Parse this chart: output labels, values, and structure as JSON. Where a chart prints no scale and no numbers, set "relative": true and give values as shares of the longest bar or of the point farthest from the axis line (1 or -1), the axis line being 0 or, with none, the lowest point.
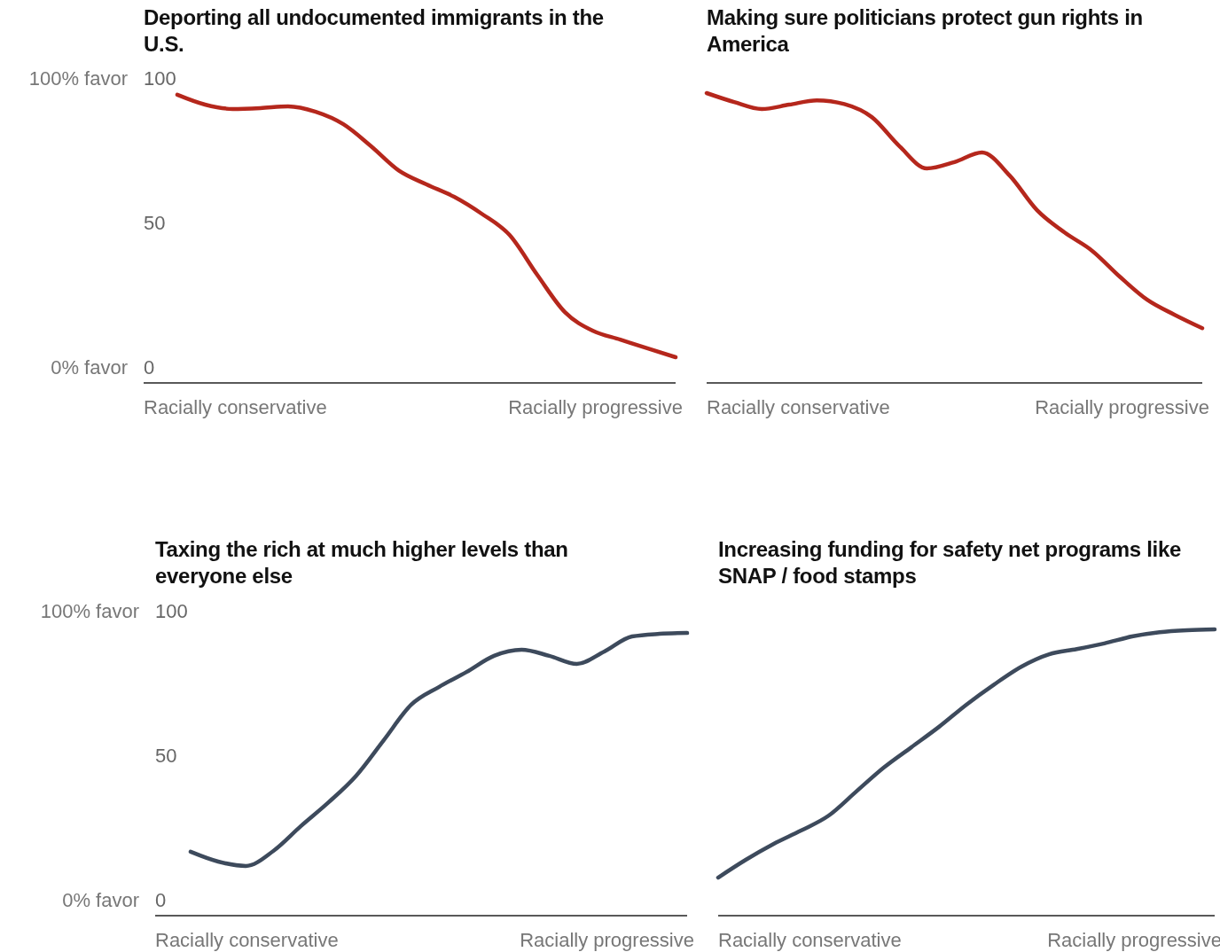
{
  "chart_data": [
    {
      "type": "line",
      "title": "Deporting all undocumented immigrants in the U.S.",
      "categories": [
        null,
        null,
        null,
        null,
        null,
        null,
        null,
        null,
        null,
        null,
        null,
        null,
        null,
        null,
        null,
        null,
        null,
        null,
        null
      ],
      "series": [
        {
          "color": "#b5271c",
          "values": [
            94.2,
            90.8,
            89.3,
            89.6,
            90.2,
            88.3,
            84,
            76.4,
            68,
            63.2,
            58.9,
            53,
            45.7,
            31.9,
            19,
            12.6,
            9.5,
            6.4,
            3.4
          ]
        }
      ],
      "ylim": [
        -5.5,
        100
      ],
      "yticks": [
        0,
        50,
        100
      ],
      "grid": false,
      "marker": "none",
      "line_style": "solid",
      "annotations": [
        "Racially conservative",
        "Racially progressive",
        "100% favor",
        "0% favor"
      ]
    },
    {
      "type": "line",
      "title": "Making sure politicians protect gun rights in America",
      "categories": [
        null,
        null,
        null,
        null,
        null,
        null,
        null,
        null,
        null,
        null,
        null,
        null,
        null,
        null,
        null,
        null,
        null,
        null,
        null
      ],
      "series": [
        {
          "color": "#b5271c",
          "values": [
            1,
            0.969,
            0.945,
            0.96,
            0.975,
            0.962,
            0.917,
            0.817,
            0.74,
            0.762,
            0.795,
            0.716,
            0.596,
            0.519,
            0.456,
            0.367,
            0.287,
            0.235,
            0.189
          ]
        }
      ],
      "relative": true,
      "grid": false,
      "marker": "none",
      "line_style": "solid",
      "annotations": [
        "Racially conservative",
        "Racially progressive"
      ]
    },
    {
      "type": "line",
      "title": "Taxing the rich at much higher levels than everyone else",
      "categories": [
        null,
        null,
        null,
        null,
        null,
        null,
        null,
        null,
        null,
        null,
        null,
        null,
        null,
        null,
        null,
        null,
        null,
        null,
        null
      ],
      "series": [
        {
          "color": "#3d4a5c",
          "values": [
            16.6,
            13.2,
            11.7,
            16.9,
            25.5,
            33.7,
            42.9,
            55.2,
            67.5,
            73.6,
            78.8,
            84.4,
            86.5,
            84.4,
            81.6,
            85.9,
            91.1,
            92,
            92.3
          ]
        }
      ],
      "ylim": [
        -5.5,
        100
      ],
      "yticks": [
        0,
        50,
        100
      ],
      "grid": false,
      "marker": "none",
      "line_style": "solid",
      "annotations": [
        "Racially conservative",
        "Racially progressive",
        "100% favor",
        "0% favor"
      ]
    },
    {
      "type": "line",
      "title": "Increasing funding for safety net programs like SNAP / food stamps",
      "categories": [
        null,
        null,
        null,
        null,
        null,
        null,
        null,
        null,
        null,
        null,
        null,
        null,
        null,
        null,
        null,
        null,
        null,
        null,
        null
      ],
      "series": [
        {
          "color": "#3d4a5c",
          "values": [
            0.133,
            0.195,
            0.25,
            0.297,
            0.349,
            0.433,
            0.517,
            0.588,
            0.659,
            0.737,
            0.807,
            0.87,
            0.913,
            0.931,
            0.951,
            0.975,
            0.99,
            0.997,
            1
          ]
        }
      ],
      "relative": true,
      "grid": false,
      "marker": "none",
      "line_style": "solid",
      "annotations": [
        "Racially conservative",
        "Racially progressive"
      ]
    }
  ]
}
